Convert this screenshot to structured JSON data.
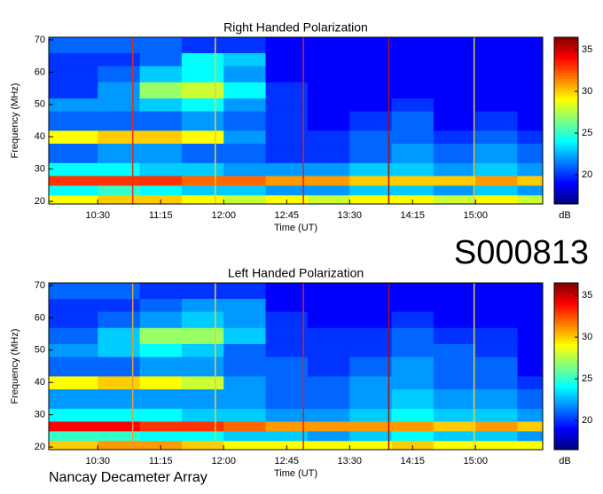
{
  "label": "S000813",
  "footer": "Nancay Decameter Array",
  "chart_data": [
    {
      "type": "heatmap",
      "title": "Right Handed Polarization",
      "xlabel": "Time (UT)",
      "ylabel": "Frequency (MHz)",
      "colormap": "jet",
      "xlim": [
        595,
        948
      ],
      "ylim": [
        19.2,
        70.8
      ],
      "xticks": [
        {
          "value": 630,
          "label": "10:30"
        },
        {
          "value": 675,
          "label": "11:15"
        },
        {
          "value": 720,
          "label": "12:00"
        },
        {
          "value": 765,
          "label": "12:45"
        },
        {
          "value": 810,
          "label": "13:30"
        },
        {
          "value": 855,
          "label": "14:15"
        },
        {
          "value": 900,
          "label": "15:00"
        }
      ],
      "yticks": [
        20,
        30,
        40,
        50,
        60,
        70
      ],
      "colorbar": {
        "label": "dB",
        "lim": [
          16.5,
          36.5
        ],
        "ticks": [
          20,
          25,
          30,
          35
        ]
      },
      "x_edges": [
        595,
        630,
        660,
        690,
        720,
        750,
        780,
        810,
        840,
        870,
        900,
        930,
        948
      ],
      "y_edges": [
        19.2,
        22,
        25,
        28,
        32,
        38,
        42,
        48,
        52,
        57,
        62,
        66,
        70.8
      ],
      "z": [
        [
          29,
          30,
          30,
          29,
          28,
          29,
          28,
          29,
          29,
          28,
          29,
          28
        ],
        [
          24,
          25,
          24,
          23,
          23,
          22,
          22,
          23,
          23,
          22,
          23,
          22
        ],
        [
          33,
          33,
          33,
          32,
          32,
          31,
          31,
          30,
          30,
          30,
          31,
          30
        ],
        [
          24,
          24,
          23,
          23,
          22,
          22,
          22,
          23,
          23,
          22,
          23,
          22
        ],
        [
          21,
          22,
          22,
          21,
          21,
          20,
          20,
          21,
          22,
          21,
          22,
          21
        ],
        [
          29,
          30,
          30,
          29,
          22,
          20,
          20,
          21,
          21,
          20,
          21,
          20
        ],
        [
          21,
          21,
          21,
          22,
          21,
          20,
          19,
          20,
          21,
          19,
          20,
          19
        ],
        [
          22,
          22,
          23,
          24,
          22,
          20,
          19,
          19,
          20,
          19,
          19,
          19
        ],
        [
          20,
          22,
          27,
          28,
          24,
          20,
          19,
          19,
          19,
          19,
          19,
          19
        ],
        [
          20,
          21,
          23,
          24,
          22,
          19,
          19,
          19,
          19,
          19,
          19,
          19
        ],
        [
          20,
          20,
          21,
          24,
          23,
          19,
          19,
          19,
          19,
          19,
          19,
          19
        ],
        [
          21,
          21,
          21,
          20,
          20,
          19,
          19,
          19,
          19,
          19,
          19,
          19
        ]
      ],
      "markers": [
        {
          "x": 655,
          "color": "#e03020"
        },
        {
          "x": 714,
          "color": "#e0d040"
        },
        {
          "x": 777,
          "color": "#e02010"
        },
        {
          "x": 838,
          "color": "#a01010"
        },
        {
          "x": 899,
          "color": "#e0d040"
        }
      ]
    },
    {
      "type": "heatmap",
      "title": "Left Handed Polarization",
      "xlabel": "Time (UT)",
      "ylabel": "Frequency (MHz)",
      "colormap": "jet",
      "xlim": [
        595,
        948
      ],
      "ylim": [
        19.2,
        70.8
      ],
      "xticks": [
        {
          "value": 630,
          "label": "10:30"
        },
        {
          "value": 675,
          "label": "11:15"
        },
        {
          "value": 720,
          "label": "12:00"
        },
        {
          "value": 765,
          "label": "12:45"
        },
        {
          "value": 810,
          "label": "13:30"
        },
        {
          "value": 855,
          "label": "14:15"
        },
        {
          "value": 900,
          "label": "15:00"
        }
      ],
      "yticks": [
        20,
        30,
        40,
        50,
        60,
        70
      ],
      "colorbar": {
        "label": "dB",
        "lim": [
          16.5,
          36.5
        ],
        "ticks": [
          20,
          25,
          30,
          35
        ]
      },
      "x_edges": [
        595,
        630,
        660,
        690,
        720,
        750,
        780,
        810,
        840,
        870,
        900,
        930,
        948
      ],
      "y_edges": [
        19.2,
        22,
        25,
        28,
        32,
        38,
        42,
        48,
        52,
        57,
        62,
        66,
        70.8
      ],
      "z": [
        [
          30,
          31,
          31,
          30,
          29,
          29,
          29,
          29,
          30,
          29,
          29,
          29
        ],
        [
          25,
          25,
          24,
          24,
          23,
          23,
          22,
          23,
          24,
          23,
          23,
          22
        ],
        [
          34,
          34,
          33,
          33,
          32,
          31,
          31,
          31,
          31,
          30,
          31,
          30
        ],
        [
          24,
          24,
          24,
          23,
          23,
          22,
          22,
          23,
          24,
          23,
          23,
          22
        ],
        [
          22,
          22,
          22,
          22,
          22,
          21,
          21,
          22,
          23,
          22,
          22,
          21
        ],
        [
          29,
          30,
          29,
          28,
          22,
          21,
          21,
          22,
          22,
          21,
          21,
          20
        ],
        [
          21,
          21,
          22,
          22,
          21,
          21,
          20,
          21,
          22,
          21,
          21,
          19
        ],
        [
          22,
          23,
          24,
          23,
          21,
          20,
          20,
          20,
          21,
          21,
          20,
          19
        ],
        [
          21,
          23,
          27,
          27,
          23,
          20,
          20,
          20,
          21,
          20,
          20,
          19
        ],
        [
          20,
          21,
          22,
          23,
          22,
          20,
          19,
          19,
          20,
          19,
          19,
          19
        ],
        [
          20,
          20,
          21,
          22,
          22,
          19,
          19,
          19,
          19,
          19,
          19,
          19
        ],
        [
          21,
          21,
          20,
          20,
          20,
          19,
          19,
          19,
          19,
          19,
          19,
          19
        ]
      ],
      "markers": [
        {
          "x": 655,
          "color": "#e0a040"
        },
        {
          "x": 714,
          "color": "#e0d040"
        },
        {
          "x": 777,
          "color": "#e02010"
        },
        {
          "x": 838,
          "color": "#a01010"
        },
        {
          "x": 899,
          "color": "#e0d040"
        }
      ]
    }
  ]
}
